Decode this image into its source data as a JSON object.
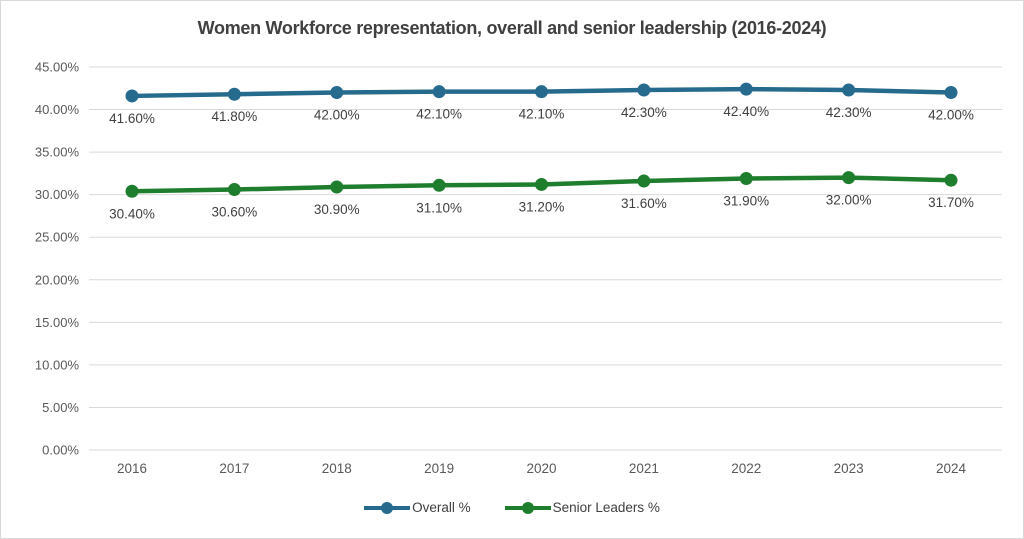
{
  "chart_data": {
    "type": "line",
    "title": "Women Workforce representation, overall and senior leadership (2016-2024)",
    "categories": [
      "2016",
      "2017",
      "2018",
      "2019",
      "2020",
      "2021",
      "2022",
      "2023",
      "2024"
    ],
    "series": [
      {
        "name": "Overall %",
        "color": "#266b8e",
        "values": [
          41.6,
          41.8,
          42.0,
          42.1,
          42.1,
          42.3,
          42.4,
          42.3,
          42.0
        ],
        "labels": [
          "41.60%",
          "41.80%",
          "42.00%",
          "42.10%",
          "42.10%",
          "42.30%",
          "42.40%",
          "42.30%",
          "42.00%"
        ]
      },
      {
        "name": "Senior Leaders %",
        "color": "#1e7e2e",
        "values": [
          30.4,
          30.6,
          30.9,
          31.1,
          31.2,
          31.6,
          31.9,
          32.0,
          31.7
        ],
        "labels": [
          "30.40%",
          "30.60%",
          "30.90%",
          "31.10%",
          "31.20%",
          "31.60%",
          "31.90%",
          "32.00%",
          "31.70%"
        ]
      }
    ],
    "y_ticks": [
      "45.00%",
      "40.00%",
      "35.00%",
      "30.00%",
      "25.00%",
      "20.00%",
      "15.00%",
      "10.00%",
      "5.00%",
      "0.00%"
    ],
    "ylim": [
      0,
      45
    ],
    "xlabel": "",
    "ylabel": "",
    "grid": true,
    "legend_position": "bottom",
    "grid_color": "#d9d9d9",
    "tick_label_color": "#595959",
    "data_label_color": "#404040",
    "title_color": "#404040"
  }
}
